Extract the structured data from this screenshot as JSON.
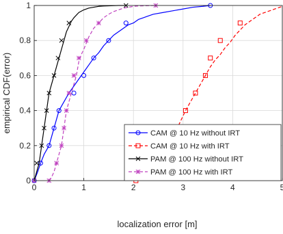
{
  "chart_data": {
    "type": "line",
    "title": "",
    "xlabel": "localization error [m]",
    "ylabel": "empirical CDF(error)",
    "xlim": [
      0,
      5
    ],
    "ylim": [
      0,
      1
    ],
    "xticks": [
      "0",
      "1",
      "2",
      "3",
      "4",
      "5"
    ],
    "yticks": [
      "0",
      "0.2",
      "0.4",
      "0.6",
      "0.8",
      "1"
    ],
    "grid": true,
    "legend_position": "bottom-right",
    "series": [
      {
        "name": "CAM @ 10 Hz without IRT",
        "color": "#0000ff",
        "dash": "solid",
        "marker": "circle",
        "x": [
          0.0,
          0.07,
          0.13,
          0.2,
          0.3,
          0.4,
          0.5,
          0.6,
          0.7,
          0.8,
          0.9,
          1.0,
          1.1,
          1.2,
          1.3,
          1.4,
          1.5,
          1.6,
          1.7,
          1.8,
          1.9,
          2.0,
          2.1,
          2.2,
          2.3,
          2.4,
          2.6,
          2.8,
          3.0,
          3.2,
          3.4,
          3.55
        ],
        "y": [
          0.0,
          0.05,
          0.1,
          0.15,
          0.2,
          0.3,
          0.4,
          0.45,
          0.5,
          0.54,
          0.58,
          0.62,
          0.66,
          0.7,
          0.73,
          0.77,
          0.8,
          0.83,
          0.85,
          0.87,
          0.89,
          0.9,
          0.92,
          0.93,
          0.94,
          0.95,
          0.96,
          0.97,
          0.98,
          0.99,
          0.995,
          1.0
        ],
        "marker_points": [
          [
            0.0,
            0.0
          ],
          [
            0.13,
            0.1
          ],
          [
            0.3,
            0.2
          ],
          [
            0.4,
            0.3
          ],
          [
            0.5,
            0.4
          ],
          [
            0.8,
            0.5
          ],
          [
            1.0,
            0.6
          ],
          [
            1.2,
            0.7
          ],
          [
            1.5,
            0.8
          ],
          [
            1.85,
            0.9
          ],
          [
            3.55,
            1.0
          ]
        ]
      },
      {
        "name": "CAM @ 10 Hz with IRT",
        "color": "#ff0000",
        "dash": "dashed",
        "marker": "square",
        "x": [
          2.05,
          2.15,
          2.25,
          2.35,
          2.45,
          2.55,
          2.65,
          2.75,
          2.85,
          2.95,
          3.05,
          3.15,
          3.25,
          3.35,
          3.45,
          3.55,
          3.65,
          3.75,
          3.85,
          3.95,
          4.05,
          4.15,
          4.25,
          4.35,
          4.45,
          4.55,
          4.65,
          4.75,
          4.85,
          4.95,
          5.0
        ],
        "y": [
          0.0,
          0.02,
          0.04,
          0.06,
          0.09,
          0.13,
          0.18,
          0.23,
          0.28,
          0.34,
          0.4,
          0.45,
          0.5,
          0.55,
          0.6,
          0.65,
          0.69,
          0.72,
          0.76,
          0.79,
          0.83,
          0.86,
          0.89,
          0.91,
          0.93,
          0.95,
          0.96,
          0.97,
          0.98,
          0.99,
          0.995
        ],
        "marker_points": [
          [
            2.05,
            0.0
          ],
          [
            2.75,
            0.2
          ],
          [
            2.95,
            0.3
          ],
          [
            3.05,
            0.4
          ],
          [
            3.25,
            0.5
          ],
          [
            3.45,
            0.6
          ],
          [
            3.55,
            0.7
          ],
          [
            3.75,
            0.8
          ],
          [
            4.15,
            0.9
          ]
        ]
      },
      {
        "name": "PAM @ 100 Hz without IRT",
        "color": "#000000",
        "dash": "solid",
        "marker": "x",
        "x": [
          0.0,
          0.05,
          0.1,
          0.15,
          0.2,
          0.25,
          0.3,
          0.35,
          0.4,
          0.45,
          0.5,
          0.55,
          0.6,
          0.65,
          0.7,
          0.75,
          0.8,
          0.9,
          1.0,
          1.1,
          1.2,
          1.3,
          1.4,
          1.5,
          1.6,
          1.7,
          1.85
        ],
        "y": [
          0.0,
          0.05,
          0.1,
          0.2,
          0.3,
          0.4,
          0.5,
          0.55,
          0.6,
          0.65,
          0.7,
          0.75,
          0.8,
          0.85,
          0.88,
          0.91,
          0.93,
          0.96,
          0.975,
          0.985,
          0.99,
          0.995,
          0.997,
          0.998,
          0.999,
          1.0,
          1.0
        ],
        "marker_points": [
          [
            0.0,
            0.0
          ],
          [
            0.05,
            0.1
          ],
          [
            0.15,
            0.2
          ],
          [
            0.2,
            0.3
          ],
          [
            0.25,
            0.4
          ],
          [
            0.3,
            0.5
          ],
          [
            0.4,
            0.6
          ],
          [
            0.48,
            0.7
          ],
          [
            0.55,
            0.8
          ],
          [
            0.7,
            0.9
          ],
          [
            1.85,
            1.0
          ]
        ]
      },
      {
        "name": "PAM @ 100 Hz with IRT",
        "color": "#bf40bf",
        "dash": "dashed",
        "marker": "asterisk",
        "x": [
          0.3,
          0.35,
          0.4,
          0.45,
          0.5,
          0.55,
          0.6,
          0.65,
          0.7,
          0.75,
          0.8,
          0.85,
          0.9,
          0.95,
          1.0,
          1.1,
          1.2,
          1.3,
          1.4,
          1.5,
          1.6,
          1.7,
          1.8,
          1.9,
          2.0,
          2.1,
          2.2,
          2.3,
          2.45
        ],
        "y": [
          0.0,
          0.02,
          0.05,
          0.1,
          0.15,
          0.2,
          0.3,
          0.4,
          0.45,
          0.5,
          0.55,
          0.6,
          0.68,
          0.72,
          0.75,
          0.82,
          0.87,
          0.9,
          0.93,
          0.95,
          0.965,
          0.975,
          0.985,
          0.99,
          0.995,
          0.997,
          0.998,
          0.999,
          1.0
        ],
        "marker_points": [
          [
            0.0,
            0.0
          ],
          [
            0.3,
            0.0
          ],
          [
            0.45,
            0.1
          ],
          [
            0.55,
            0.2
          ],
          [
            0.6,
            0.3
          ],
          [
            0.65,
            0.4
          ],
          [
            0.7,
            0.5
          ],
          [
            0.8,
            0.6
          ],
          [
            0.9,
            0.7
          ],
          [
            1.05,
            0.8
          ],
          [
            1.3,
            0.9
          ],
          [
            2.45,
            1.0
          ]
        ]
      }
    ]
  }
}
